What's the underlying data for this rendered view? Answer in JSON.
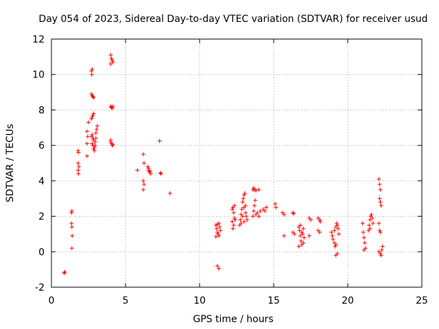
{
  "chart_data": {
    "type": "scatter",
    "title": "Day 054 of 2023, Sidereal Day-to-day VTEC variation (SDTVAR) for receiver usud",
    "xlabel": "GPS time / hours",
    "ylabel": "SDTVAR / TECUs",
    "xlim": [
      0,
      25
    ],
    "ylim": [
      -2,
      12
    ],
    "xticks": [
      0,
      5,
      10,
      15,
      20,
      25
    ],
    "yticks": [
      -2,
      0,
      2,
      4,
      6,
      8,
      10,
      12
    ],
    "xtick_labels": [
      "0",
      "5",
      "10",
      "15",
      "20",
      "25"
    ],
    "ytick_labels": [
      "-2",
      "0",
      "2",
      "4",
      "6",
      "8",
      "10",
      "12"
    ],
    "grid": true,
    "marker": "+",
    "color": "#ff0000",
    "series": [
      {
        "name": "SDTVAR",
        "points": [
          [
            0.85,
            -1.2
          ],
          [
            0.9,
            -1.15
          ],
          [
            1.35,
            2.2
          ],
          [
            1.38,
            2.3
          ],
          [
            1.35,
            1.6
          ],
          [
            1.38,
            1.4
          ],
          [
            1.4,
            0.9
          ],
          [
            1.38,
            0.2
          ],
          [
            1.8,
            5.7
          ],
          [
            1.82,
            5.6
          ],
          [
            1.8,
            5.0
          ],
          [
            1.85,
            4.8
          ],
          [
            1.8,
            4.6
          ],
          [
            1.82,
            4.4
          ],
          [
            2.4,
            5.4
          ],
          [
            2.4,
            6.1
          ],
          [
            2.45,
            6.5
          ],
          [
            2.4,
            6.8
          ],
          [
            2.5,
            7.3
          ],
          [
            2.7,
            10.2
          ],
          [
            2.75,
            10.3
          ],
          [
            2.72,
            10.0
          ],
          [
            2.7,
            8.9
          ],
          [
            2.75,
            8.8
          ],
          [
            2.8,
            8.75
          ],
          [
            2.85,
            8.7
          ],
          [
            2.7,
            7.5
          ],
          [
            2.75,
            7.6
          ],
          [
            2.8,
            7.7
          ],
          [
            2.85,
            7.8
          ],
          [
            2.7,
            6.5
          ],
          [
            2.75,
            6.6
          ],
          [
            2.8,
            6.4
          ],
          [
            2.85,
            6.3
          ],
          [
            2.75,
            6.1
          ],
          [
            2.8,
            6.0
          ],
          [
            2.9,
            5.9
          ],
          [
            2.95,
            6.2
          ],
          [
            3.0,
            6.4
          ],
          [
            3.0,
            6.7
          ],
          [
            3.05,
            6.9
          ],
          [
            3.1,
            7.1
          ],
          [
            2.85,
            5.8
          ],
          [
            2.9,
            5.7
          ],
          [
            2.95,
            6.0
          ],
          [
            4.0,
            11.1
          ],
          [
            4.05,
            10.9
          ],
          [
            4.1,
            10.8
          ],
          [
            4.15,
            10.7
          ],
          [
            4.0,
            10.6
          ],
          [
            4.0,
            8.2
          ],
          [
            4.05,
            8.15
          ],
          [
            4.1,
            8.1
          ],
          [
            4.15,
            8.2
          ],
          [
            4.0,
            6.2
          ],
          [
            4.05,
            6.1
          ],
          [
            4.1,
            6.0
          ],
          [
            4.15,
            6.05
          ],
          [
            4.0,
            6.3
          ],
          [
            5.8,
            4.6
          ],
          [
            6.2,
            5.5
          ],
          [
            6.25,
            5.0
          ],
          [
            6.2,
            4.0
          ],
          [
            6.25,
            3.8
          ],
          [
            6.2,
            3.5
          ],
          [
            6.5,
            4.8
          ],
          [
            6.55,
            4.6
          ],
          [
            6.6,
            4.5
          ],
          [
            6.65,
            4.55
          ],
          [
            6.7,
            4.4
          ],
          [
            6.55,
            4.7
          ],
          [
            7.3,
            6.25
          ],
          [
            7.35,
            4.45
          ],
          [
            7.4,
            4.4
          ],
          [
            8.0,
            3.3
          ],
          [
            11.1,
            1.5
          ],
          [
            11.15,
            1.3
          ],
          [
            11.2,
            1.1
          ],
          [
            11.25,
            1.0
          ],
          [
            11.3,
            0.9
          ],
          [
            11.1,
            0.85
          ],
          [
            11.35,
            1.4
          ],
          [
            11.4,
            1.2
          ],
          [
            11.2,
            1.55
          ],
          [
            11.3,
            1.6
          ],
          [
            11.2,
            -0.8
          ],
          [
            11.3,
            -0.95
          ],
          [
            12.2,
            2.4
          ],
          [
            12.25,
            2.5
          ],
          [
            12.3,
            2.2
          ],
          [
            12.35,
            1.9
          ],
          [
            12.2,
            1.7
          ],
          [
            12.3,
            1.5
          ],
          [
            12.25,
            1.3
          ],
          [
            12.4,
            1.8
          ],
          [
            12.35,
            2.6
          ],
          [
            12.7,
            1.5
          ],
          [
            12.75,
            1.8
          ],
          [
            12.8,
            2.1
          ],
          [
            12.85,
            2.4
          ],
          [
            12.9,
            2.8
          ],
          [
            12.95,
            3.0
          ],
          [
            13.0,
            3.2
          ],
          [
            13.05,
            3.3
          ],
          [
            12.8,
            1.6
          ],
          [
            12.9,
            2.0
          ],
          [
            13.0,
            2.5
          ],
          [
            13.1,
            2.2
          ],
          [
            13.1,
            2.6
          ],
          [
            13.15,
            2.0
          ],
          [
            13.2,
            1.8
          ],
          [
            13.0,
            1.7
          ],
          [
            13.6,
            2.0
          ],
          [
            13.65,
            2.3
          ],
          [
            13.7,
            2.6
          ],
          [
            13.75,
            2.9
          ],
          [
            13.6,
            3.5
          ],
          [
            13.65,
            3.6
          ],
          [
            13.7,
            3.5
          ],
          [
            13.8,
            3.45
          ],
          [
            14.0,
            3.5
          ],
          [
            13.8,
            2.1
          ],
          [
            13.9,
            2.2
          ],
          [
            14.0,
            2.0
          ],
          [
            14.1,
            2.3
          ],
          [
            14.3,
            2.4
          ],
          [
            14.4,
            2.3
          ],
          [
            14.5,
            2.5
          ],
          [
            15.1,
            2.7
          ],
          [
            15.15,
            2.5
          ],
          [
            15.6,
            2.2
          ],
          [
            15.7,
            2.1
          ],
          [
            15.7,
            0.9
          ],
          [
            16.3,
            2.2
          ],
          [
            16.35,
            2.15
          ],
          [
            16.3,
            1.1
          ],
          [
            16.4,
            1.0
          ],
          [
            16.7,
            1.4
          ],
          [
            16.75,
            1.2
          ],
          [
            16.8,
            0.9
          ],
          [
            16.85,
            0.6
          ],
          [
            16.9,
            0.4
          ],
          [
            16.7,
            0.3
          ],
          [
            16.95,
            1.0
          ],
          [
            17.0,
            1.3
          ],
          [
            17.05,
            0.8
          ],
          [
            16.8,
            1.5
          ],
          [
            16.9,
            1.1
          ],
          [
            17.0,
            0.5
          ],
          [
            17.4,
            0.9
          ],
          [
            17.4,
            1.9
          ],
          [
            17.5,
            1.8
          ],
          [
            18.0,
            1.9
          ],
          [
            18.1,
            1.8
          ],
          [
            18.15,
            1.7
          ],
          [
            18.0,
            1.2
          ],
          [
            18.1,
            1.1
          ],
          [
            18.9,
            1.1
          ],
          [
            18.95,
            0.9
          ],
          [
            19.0,
            0.7
          ],
          [
            19.1,
            0.5
          ],
          [
            19.15,
            0.3
          ],
          [
            19.2,
            0.4
          ],
          [
            19.1,
            1.2
          ],
          [
            19.2,
            1.4
          ],
          [
            19.25,
            1.6
          ],
          [
            19.3,
            1.5
          ],
          [
            19.35,
            1.3
          ],
          [
            19.4,
            1.0
          ],
          [
            19.2,
            -0.2
          ],
          [
            19.3,
            -0.1
          ],
          [
            21.0,
            1.6
          ],
          [
            21.05,
            1.1
          ],
          [
            21.1,
            0.8
          ],
          [
            21.15,
            0.5
          ],
          [
            21.2,
            0.2
          ],
          [
            21.1,
            0.1
          ],
          [
            21.4,
            1.2
          ],
          [
            21.45,
            1.5
          ],
          [
            21.5,
            1.8
          ],
          [
            21.55,
            2.0
          ],
          [
            21.6,
            2.1
          ],
          [
            21.65,
            1.9
          ],
          [
            21.7,
            1.6
          ],
          [
            21.5,
            1.3
          ],
          [
            22.1,
            4.1
          ],
          [
            22.15,
            3.8
          ],
          [
            22.2,
            3.5
          ],
          [
            22.15,
            3.0
          ],
          [
            22.2,
            2.8
          ],
          [
            22.25,
            2.6
          ],
          [
            22.1,
            1.6
          ],
          [
            22.15,
            1.2
          ],
          [
            22.2,
            1.1
          ],
          [
            22.1,
            0.0
          ],
          [
            22.2,
            -0.1
          ],
          [
            22.25,
            -0.2
          ],
          [
            22.3,
            0.1
          ],
          [
            22.35,
            0.3
          ]
        ]
      }
    ]
  }
}
